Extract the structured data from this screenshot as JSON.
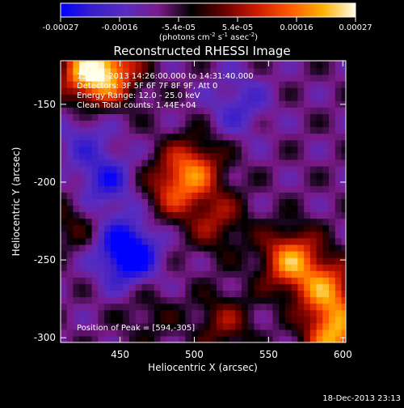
{
  "colorbar": {
    "tick_labels": [
      "-0.00027",
      "-0.00016",
      "-5.4e-05",
      "5.4e-05",
      "0.00016",
      "0.00027"
    ],
    "unit_prefix": "(photons cm",
    "unit_exp1": "-2",
    "unit_mid": " s",
    "unit_exp2": "-1",
    "unit_mid2": " asec",
    "unit_exp3": "-2",
    "unit_suffix": ")",
    "colors": [
      "#0000ff",
      "#3a1ec8",
      "#5a2cc0",
      "#7a1a8a",
      "#000000",
      "#6a0000",
      "#d01a00",
      "#ff5a00",
      "#ffb000",
      "#ffffe6"
    ]
  },
  "chart_data": {
    "type": "heatmap",
    "title": "Reconstructed RHESSI Image",
    "xlabel": "Heliocentric X (arcsec)",
    "ylabel": "Heliocentric Y (arcsec)",
    "xlim": [
      410,
      602
    ],
    "ylim": [
      -303,
      -122
    ],
    "x_ticks": [
      "450",
      "500",
      "550",
      "600"
    ],
    "y_ticks": [
      "-150",
      "-200",
      "-250",
      "-300"
    ],
    "x_tick_values": [
      450,
      500,
      550,
      600
    ],
    "y_tick_values": [
      -150,
      -200,
      -250,
      -300
    ],
    "value_range": [
      -0.00027,
      0.00027
    ],
    "annotations": [
      "15-Dec-2013 14:26:00.000 to 14:31:40.000",
      "Detectors: 3F 5F 6F 7F 8F 9F, Att 0",
      "Energy Range: 12.0 - 25.0 keV",
      "Clean    Total counts: 1.44E+04"
    ],
    "peak_label": "Position of Peak = [594,-305]",
    "sources": [
      {
        "x": 428,
        "y": -130,
        "value": 0.00026
      },
      {
        "x": 445,
        "y": -128,
        "value": 0.0002
      },
      {
        "x": 500,
        "y": -190,
        "value": 0.00019
      },
      {
        "x": 485,
        "y": -205,
        "value": 0.00015
      },
      {
        "x": 515,
        "y": -225,
        "value": 0.00013
      },
      {
        "x": 565,
        "y": -250,
        "value": 0.00026
      },
      {
        "x": 590,
        "y": -270,
        "value": 0.00023
      },
      {
        "x": 595,
        "y": -300,
        "value": 0.00027
      },
      {
        "x": 520,
        "y": -290,
        "value": 0.00012
      },
      {
        "x": 418,
        "y": -225,
        "value": 8e-05
      },
      {
        "x": 470,
        "y": -285,
        "value": 6e-05
      },
      {
        "x": 455,
        "y": -245,
        "value": -0.00026
      },
      {
        "x": 440,
        "y": -200,
        "value": -0.00014
      },
      {
        "x": 530,
        "y": -150,
        "value": -0.0001
      },
      {
        "x": 425,
        "y": -170,
        "value": -8e-05
      }
    ]
  },
  "footer": {
    "timestamp": "18-Dec-2013 23:13"
  }
}
